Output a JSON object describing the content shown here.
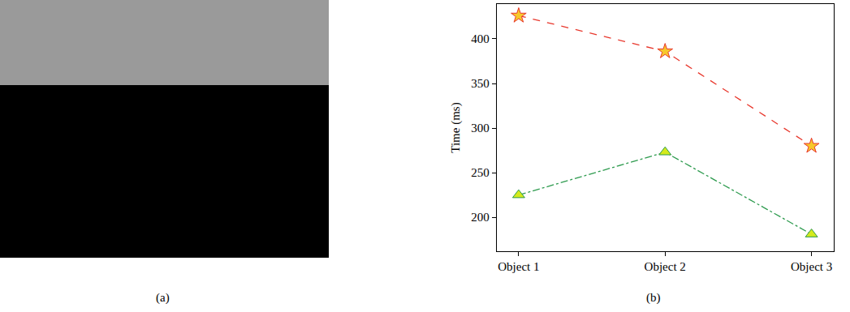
{
  "chart_data": {
    "type": "line",
    "categories": [
      "Object 1",
      "Object 2",
      "Object 3"
    ],
    "y_label": "Time (ms)",
    "series": [
      {
        "color": "#e8372c",
        "marker": "star",
        "line_style": "dash",
        "values": [
          426,
          386,
          280
        ]
      },
      {
        "color": "#2e9b4f",
        "marker": "triangle-up",
        "line_style": "dashdot",
        "values": [
          225,
          273,
          181
        ]
      }
    ],
    "ylim": [
      162,
      439
    ],
    "yticks": [
      200,
      250,
      300,
      350,
      400
    ],
    "grid": false,
    "annotations": [
      "(a)",
      "(b)"
    ]
  }
}
